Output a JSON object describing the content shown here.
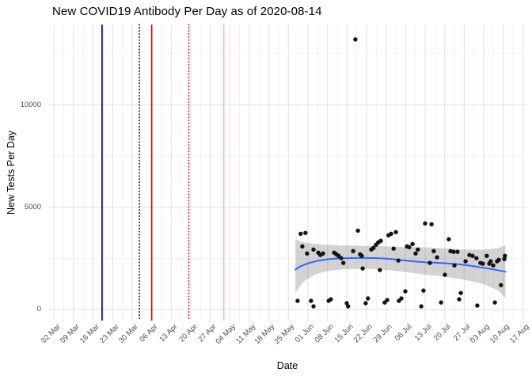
{
  "title": "New COVID19 Antibody Per Day as of 2020-08-14",
  "chart_data": {
    "type": "scatter",
    "title": "New COVID19 Antibody Per Day as of 2020-08-14",
    "xlabel": "Date",
    "ylabel": "New Tests Per Day",
    "x_axis": {
      "tick_labels": [
        "02 Mar",
        "09 Mar",
        "16 Mar",
        "23 Mar",
        "30 Mar",
        "06 Apr",
        "13 Apr",
        "20 Apr",
        "27 Apr",
        "04 May",
        "11 May",
        "18 May",
        "25 May",
        "01 Jun",
        "08 Jun",
        "15 Jun",
        "22 Jun",
        "29 Jun",
        "06 Jul",
        "13 Jul",
        "20 Jul",
        "27 Jul",
        "03 Aug",
        "10 Aug",
        "17 Aug"
      ],
      "tick_interval_days": 7,
      "domain_days": [
        0,
        168
      ],
      "grid": "major-and-minor"
    },
    "y_axis": {
      "tick_labels": [
        "0",
        "5000",
        "10000"
      ],
      "ticks": [
        0,
        5000,
        10000
      ],
      "minor_ticks": [
        2500,
        7500,
        12500
      ],
      "ylim": [
        -550,
        13950
      ],
      "grid": "major-and-minor"
    },
    "vlines": [
      {
        "day": 17.2,
        "style": "solid",
        "color": "#0000DD",
        "name": "blue-solid-line"
      },
      {
        "day": 30.6,
        "style": "dotted",
        "color": "#000090",
        "name": "navy-dotted-line"
      },
      {
        "day": 35.0,
        "style": "solid",
        "color": "#E60000",
        "name": "red-solid-line"
      },
      {
        "day": 48.3,
        "style": "dotted",
        "color": "#B22222",
        "name": "darkred-dotted-line"
      },
      {
        "day": 60.8,
        "style": "solid",
        "color": "#FFB6C1",
        "name": "pink-solid-line"
      }
    ],
    "points": [
      [
        87.3,
        425
      ],
      [
        88.4,
        3705
      ],
      [
        89.0,
        3090
      ],
      [
        90.1,
        3745
      ],
      [
        90.7,
        2740
      ],
      [
        92.1,
        425
      ],
      [
        93.0,
        2935
      ],
      [
        93.0,
        155
      ],
      [
        94.7,
        2780
      ],
      [
        95.5,
        2665
      ],
      [
        96.4,
        2740
      ],
      [
        98.4,
        425
      ],
      [
        99.2,
        500
      ],
      [
        100.4,
        2780
      ],
      [
        101.2,
        2700
      ],
      [
        102.0,
        2625
      ],
      [
        102.9,
        2510
      ],
      [
        103.7,
        2280
      ],
      [
        104.9,
        310
      ],
      [
        105.4,
        155
      ],
      [
        107.2,
        2855
      ],
      [
        108.0,
        13205
      ],
      [
        108.9,
        3860
      ],
      [
        109.7,
        2700
      ],
      [
        110.3,
        2625
      ],
      [
        110.6,
        2010
      ],
      [
        111.7,
        310
      ],
      [
        112.5,
        540
      ],
      [
        113.7,
        2935
      ],
      [
        114.5,
        3010
      ],
      [
        115.4,
        3165
      ],
      [
        116.2,
        3280
      ],
      [
        117.1,
        3360
      ],
      [
        116.8,
        1930
      ],
      [
        118.5,
        345
      ],
      [
        119.4,
        465
      ],
      [
        119.9,
        3630
      ],
      [
        120.8,
        3705
      ],
      [
        121.7,
        2975
      ],
      [
        122.5,
        3785
      ],
      [
        123.4,
        2395
      ],
      [
        123.6,
        425
      ],
      [
        124.5,
        540
      ],
      [
        125.9,
        890
      ],
      [
        126.5,
        3090
      ],
      [
        127.3,
        3050
      ],
      [
        128.5,
        3205
      ],
      [
        129.6,
        2740
      ],
      [
        130.4,
        2935
      ],
      [
        131.6,
        155
      ],
      [
        132.4,
        925
      ],
      [
        133.0,
        4210
      ],
      [
        134.7,
        2280
      ],
      [
        135.3,
        4170
      ],
      [
        136.1,
        2855
      ],
      [
        137.3,
        2550
      ],
      [
        138.7,
        345
      ],
      [
        140.1,
        1700
      ],
      [
        141.5,
        3435
      ],
      [
        142.1,
        2855
      ],
      [
        143.2,
        2820
      ],
      [
        143.5,
        2160
      ],
      [
        144.6,
        2820
      ],
      [
        145.2,
        500
      ],
      [
        145.8,
        810
      ],
      [
        147.5,
        2355
      ],
      [
        148.9,
        2665
      ],
      [
        150.0,
        2625
      ],
      [
        151.4,
        2510
      ],
      [
        151.7,
        195
      ],
      [
        152.8,
        2280
      ],
      [
        153.7,
        2240
      ],
      [
        155.1,
        2625
      ],
      [
        156.0,
        2240
      ],
      [
        156.5,
        2355
      ],
      [
        157.4,
        2160
      ],
      [
        158.0,
        345
      ],
      [
        158.8,
        2355
      ],
      [
        159.4,
        2430
      ],
      [
        160.2,
        1195
      ],
      [
        161.4,
        2470
      ],
      [
        161.6,
        2625
      ]
    ],
    "smooth_line": {
      "color": "#3366FF",
      "points": [
        [
          86.5,
          1950
        ],
        [
          88,
          2090
        ],
        [
          90,
          2210
        ],
        [
          92,
          2300
        ],
        [
          94,
          2370
        ],
        [
          96,
          2420
        ],
        [
          98,
          2455
        ],
        [
          100,
          2480
        ],
        [
          103,
          2505
        ],
        [
          106,
          2515
        ],
        [
          109,
          2520
        ],
        [
          112,
          2520
        ],
        [
          115,
          2515
        ],
        [
          118,
          2495
        ],
        [
          121,
          2465
        ],
        [
          124,
          2425
        ],
        [
          127,
          2380
        ],
        [
          130,
          2340
        ],
        [
          133,
          2310
        ],
        [
          136,
          2290
        ],
        [
          139,
          2270
        ],
        [
          142,
          2245
        ],
        [
          145,
          2215
        ],
        [
          148,
          2165
        ],
        [
          151,
          2105
        ],
        [
          154,
          2040
        ],
        [
          157,
          1975
        ],
        [
          159,
          1925
        ],
        [
          161,
          1870
        ],
        [
          161.8,
          1845
        ]
      ]
    },
    "ribbon": {
      "points": [
        [
          86.5,
          800,
          3460
        ],
        [
          88,
          1120,
          3350
        ],
        [
          90,
          1420,
          3270
        ],
        [
          92,
          1600,
          3230
        ],
        [
          94,
          1730,
          3200
        ],
        [
          96,
          1820,
          3180
        ],
        [
          98,
          1880,
          3165
        ],
        [
          100,
          1920,
          3150
        ],
        [
          103,
          1960,
          3140
        ],
        [
          106,
          1980,
          3130
        ],
        [
          109,
          1990,
          3120
        ],
        [
          112,
          1990,
          3110
        ],
        [
          115,
          1975,
          3100
        ],
        [
          118,
          1950,
          3085
        ],
        [
          121,
          1915,
          3070
        ],
        [
          124,
          1870,
          3060
        ],
        [
          127,
          1815,
          3050
        ],
        [
          130,
          1760,
          3045
        ],
        [
          133,
          1710,
          3040
        ],
        [
          136,
          1665,
          3020
        ],
        [
          139,
          1620,
          3000
        ],
        [
          142,
          1565,
          2975
        ],
        [
          145,
          1505,
          2950
        ],
        [
          148,
          1430,
          2930
        ],
        [
          151,
          1340,
          2925
        ],
        [
          154,
          1225,
          2935
        ],
        [
          157,
          1070,
          2965
        ],
        [
          159,
          940,
          3000
        ],
        [
          161,
          700,
          3100
        ],
        [
          161.8,
          550,
          3150
        ]
      ]
    },
    "colors": {
      "point": "#141414",
      "smooth": "#3366FF",
      "ribbon": "rgba(110,110,110,0.30)",
      "grid_major": "#E2E2E2",
      "grid_minor": "#EFEFEF",
      "tick_text": "#4d4d4d",
      "background": "#FFFFFF"
    },
    "legend": "none"
  }
}
